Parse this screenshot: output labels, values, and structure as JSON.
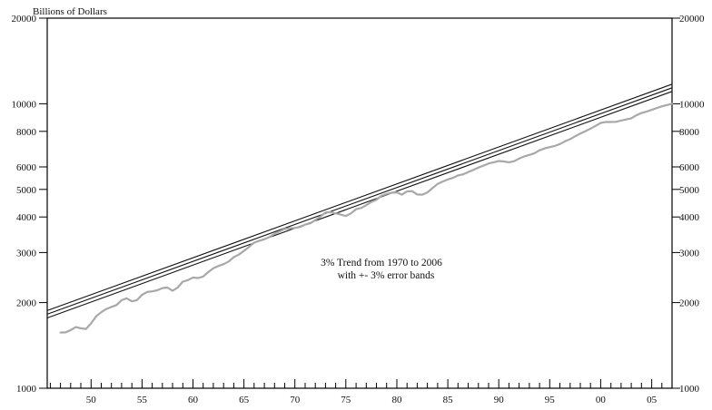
{
  "chart_data": {
    "type": "line",
    "title": "",
    "ylabel": "Billions of Dollars",
    "xlabel": "",
    "y_scale": "log",
    "ylim": [
      1000,
      20000
    ],
    "xlim": [
      1945.7,
      2007.0
    ],
    "y_ticks": [
      1000,
      2000,
      3000,
      4000,
      5000,
      6000,
      8000,
      10000,
      20000
    ],
    "y_tick_labels": [
      "1000",
      "2000",
      "3000",
      "4000",
      "5000",
      "6000",
      "8000",
      "10000",
      "20000"
    ],
    "x_tick_years": [
      1950,
      1955,
      1960,
      1965,
      1970,
      1975,
      1980,
      1985,
      1990,
      1995,
      2000,
      2005
    ],
    "x_tick_labels": [
      "50",
      "55",
      "60",
      "65",
      "70",
      "75",
      "80",
      "85",
      "90",
      "95",
      "00",
      "05"
    ],
    "annotation": [
      "3% Trend from 1970 to 2006",
      "with +- 3% error bands"
    ],
    "grid": false,
    "colors": {
      "trend": "#111111",
      "series": "#a8a8a8",
      "axis": "#000000"
    },
    "trend": {
      "start_year": 1945.7,
      "start_value": 1820,
      "end_year": 2007.0,
      "end_value": 11380,
      "band_pct": 3
    },
    "series": [
      {
        "name": "",
        "points": [
          [
            1947.0,
            1570
          ],
          [
            1947.5,
            1572
          ],
          [
            1948.0,
            1600
          ],
          [
            1948.5,
            1640
          ],
          [
            1949.0,
            1625
          ],
          [
            1949.5,
            1615
          ],
          [
            1950.0,
            1690
          ],
          [
            1950.5,
            1790
          ],
          [
            1951.0,
            1850
          ],
          [
            1951.5,
            1900
          ],
          [
            1952.0,
            1930
          ],
          [
            1952.5,
            1960
          ],
          [
            1953.0,
            2040
          ],
          [
            1953.5,
            2070
          ],
          [
            1954.0,
            2020
          ],
          [
            1954.5,
            2040
          ],
          [
            1955.0,
            2130
          ],
          [
            1955.5,
            2180
          ],
          [
            1956.0,
            2190
          ],
          [
            1956.5,
            2210
          ],
          [
            1957.0,
            2250
          ],
          [
            1957.5,
            2260
          ],
          [
            1958.0,
            2200
          ],
          [
            1958.5,
            2260
          ],
          [
            1959.0,
            2370
          ],
          [
            1959.5,
            2400
          ],
          [
            1960.0,
            2450
          ],
          [
            1960.5,
            2440
          ],
          [
            1961.0,
            2470
          ],
          [
            1961.5,
            2560
          ],
          [
            1962.0,
            2640
          ],
          [
            1962.5,
            2690
          ],
          [
            1963.0,
            2730
          ],
          [
            1963.5,
            2790
          ],
          [
            1964.0,
            2890
          ],
          [
            1964.5,
            2950
          ],
          [
            1965.0,
            3040
          ],
          [
            1965.5,
            3140
          ],
          [
            1966.0,
            3250
          ],
          [
            1966.5,
            3300
          ],
          [
            1967.0,
            3340
          ],
          [
            1967.5,
            3400
          ],
          [
            1968.0,
            3490
          ],
          [
            1968.5,
            3560
          ],
          [
            1969.0,
            3630
          ],
          [
            1969.5,
            3650
          ],
          [
            1970.0,
            3660
          ],
          [
            1970.5,
            3690
          ],
          [
            1971.0,
            3760
          ],
          [
            1971.5,
            3800
          ],
          [
            1972.0,
            3900
          ],
          [
            1972.5,
            4010
          ],
          [
            1973.0,
            4150
          ],
          [
            1973.5,
            4160
          ],
          [
            1974.0,
            4120
          ],
          [
            1974.5,
            4080
          ],
          [
            1975.0,
            4030
          ],
          [
            1975.5,
            4120
          ],
          [
            1976.0,
            4260
          ],
          [
            1976.5,
            4300
          ],
          [
            1977.0,
            4400
          ],
          [
            1977.5,
            4520
          ],
          [
            1978.0,
            4600
          ],
          [
            1978.5,
            4750
          ],
          [
            1979.0,
            4820
          ],
          [
            1979.5,
            4870
          ],
          [
            1980.0,
            4880
          ],
          [
            1980.5,
            4790
          ],
          [
            1981.0,
            4920
          ],
          [
            1981.5,
            4930
          ],
          [
            1982.0,
            4800
          ],
          [
            1982.5,
            4790
          ],
          [
            1983.0,
            4880
          ],
          [
            1983.5,
            5050
          ],
          [
            1984.0,
            5230
          ],
          [
            1984.5,
            5330
          ],
          [
            1985.0,
            5420
          ],
          [
            1985.5,
            5490
          ],
          [
            1986.0,
            5600
          ],
          [
            1986.5,
            5650
          ],
          [
            1987.0,
            5750
          ],
          [
            1987.5,
            5850
          ],
          [
            1988.0,
            5970
          ],
          [
            1988.5,
            6060
          ],
          [
            1989.0,
            6170
          ],
          [
            1989.5,
            6230
          ],
          [
            1990.0,
            6290
          ],
          [
            1990.5,
            6270
          ],
          [
            1991.0,
            6230
          ],
          [
            1991.5,
            6280
          ],
          [
            1992.0,
            6420
          ],
          [
            1992.5,
            6530
          ],
          [
            1993.0,
            6610
          ],
          [
            1993.5,
            6700
          ],
          [
            1994.0,
            6860
          ],
          [
            1994.5,
            6970
          ],
          [
            1995.0,
            7040
          ],
          [
            1995.5,
            7110
          ],
          [
            1996.0,
            7220
          ],
          [
            1996.5,
            7380
          ],
          [
            1997.0,
            7510
          ],
          [
            1997.5,
            7690
          ],
          [
            1998.0,
            7860
          ],
          [
            1998.5,
            8010
          ],
          [
            1999.0,
            8180
          ],
          [
            1999.5,
            8360
          ],
          [
            2000.0,
            8560
          ],
          [
            2000.5,
            8630
          ],
          [
            2001.0,
            8630
          ],
          [
            2001.5,
            8640
          ],
          [
            2002.0,
            8730
          ],
          [
            2002.5,
            8810
          ],
          [
            2003.0,
            8890
          ],
          [
            2003.5,
            9110
          ],
          [
            2004.0,
            9280
          ],
          [
            2004.5,
            9380
          ],
          [
            2005.0,
            9520
          ],
          [
            2005.5,
            9660
          ],
          [
            2006.0,
            9800
          ],
          [
            2006.5,
            9900
          ],
          [
            2007.0,
            10000
          ]
        ]
      }
    ]
  }
}
